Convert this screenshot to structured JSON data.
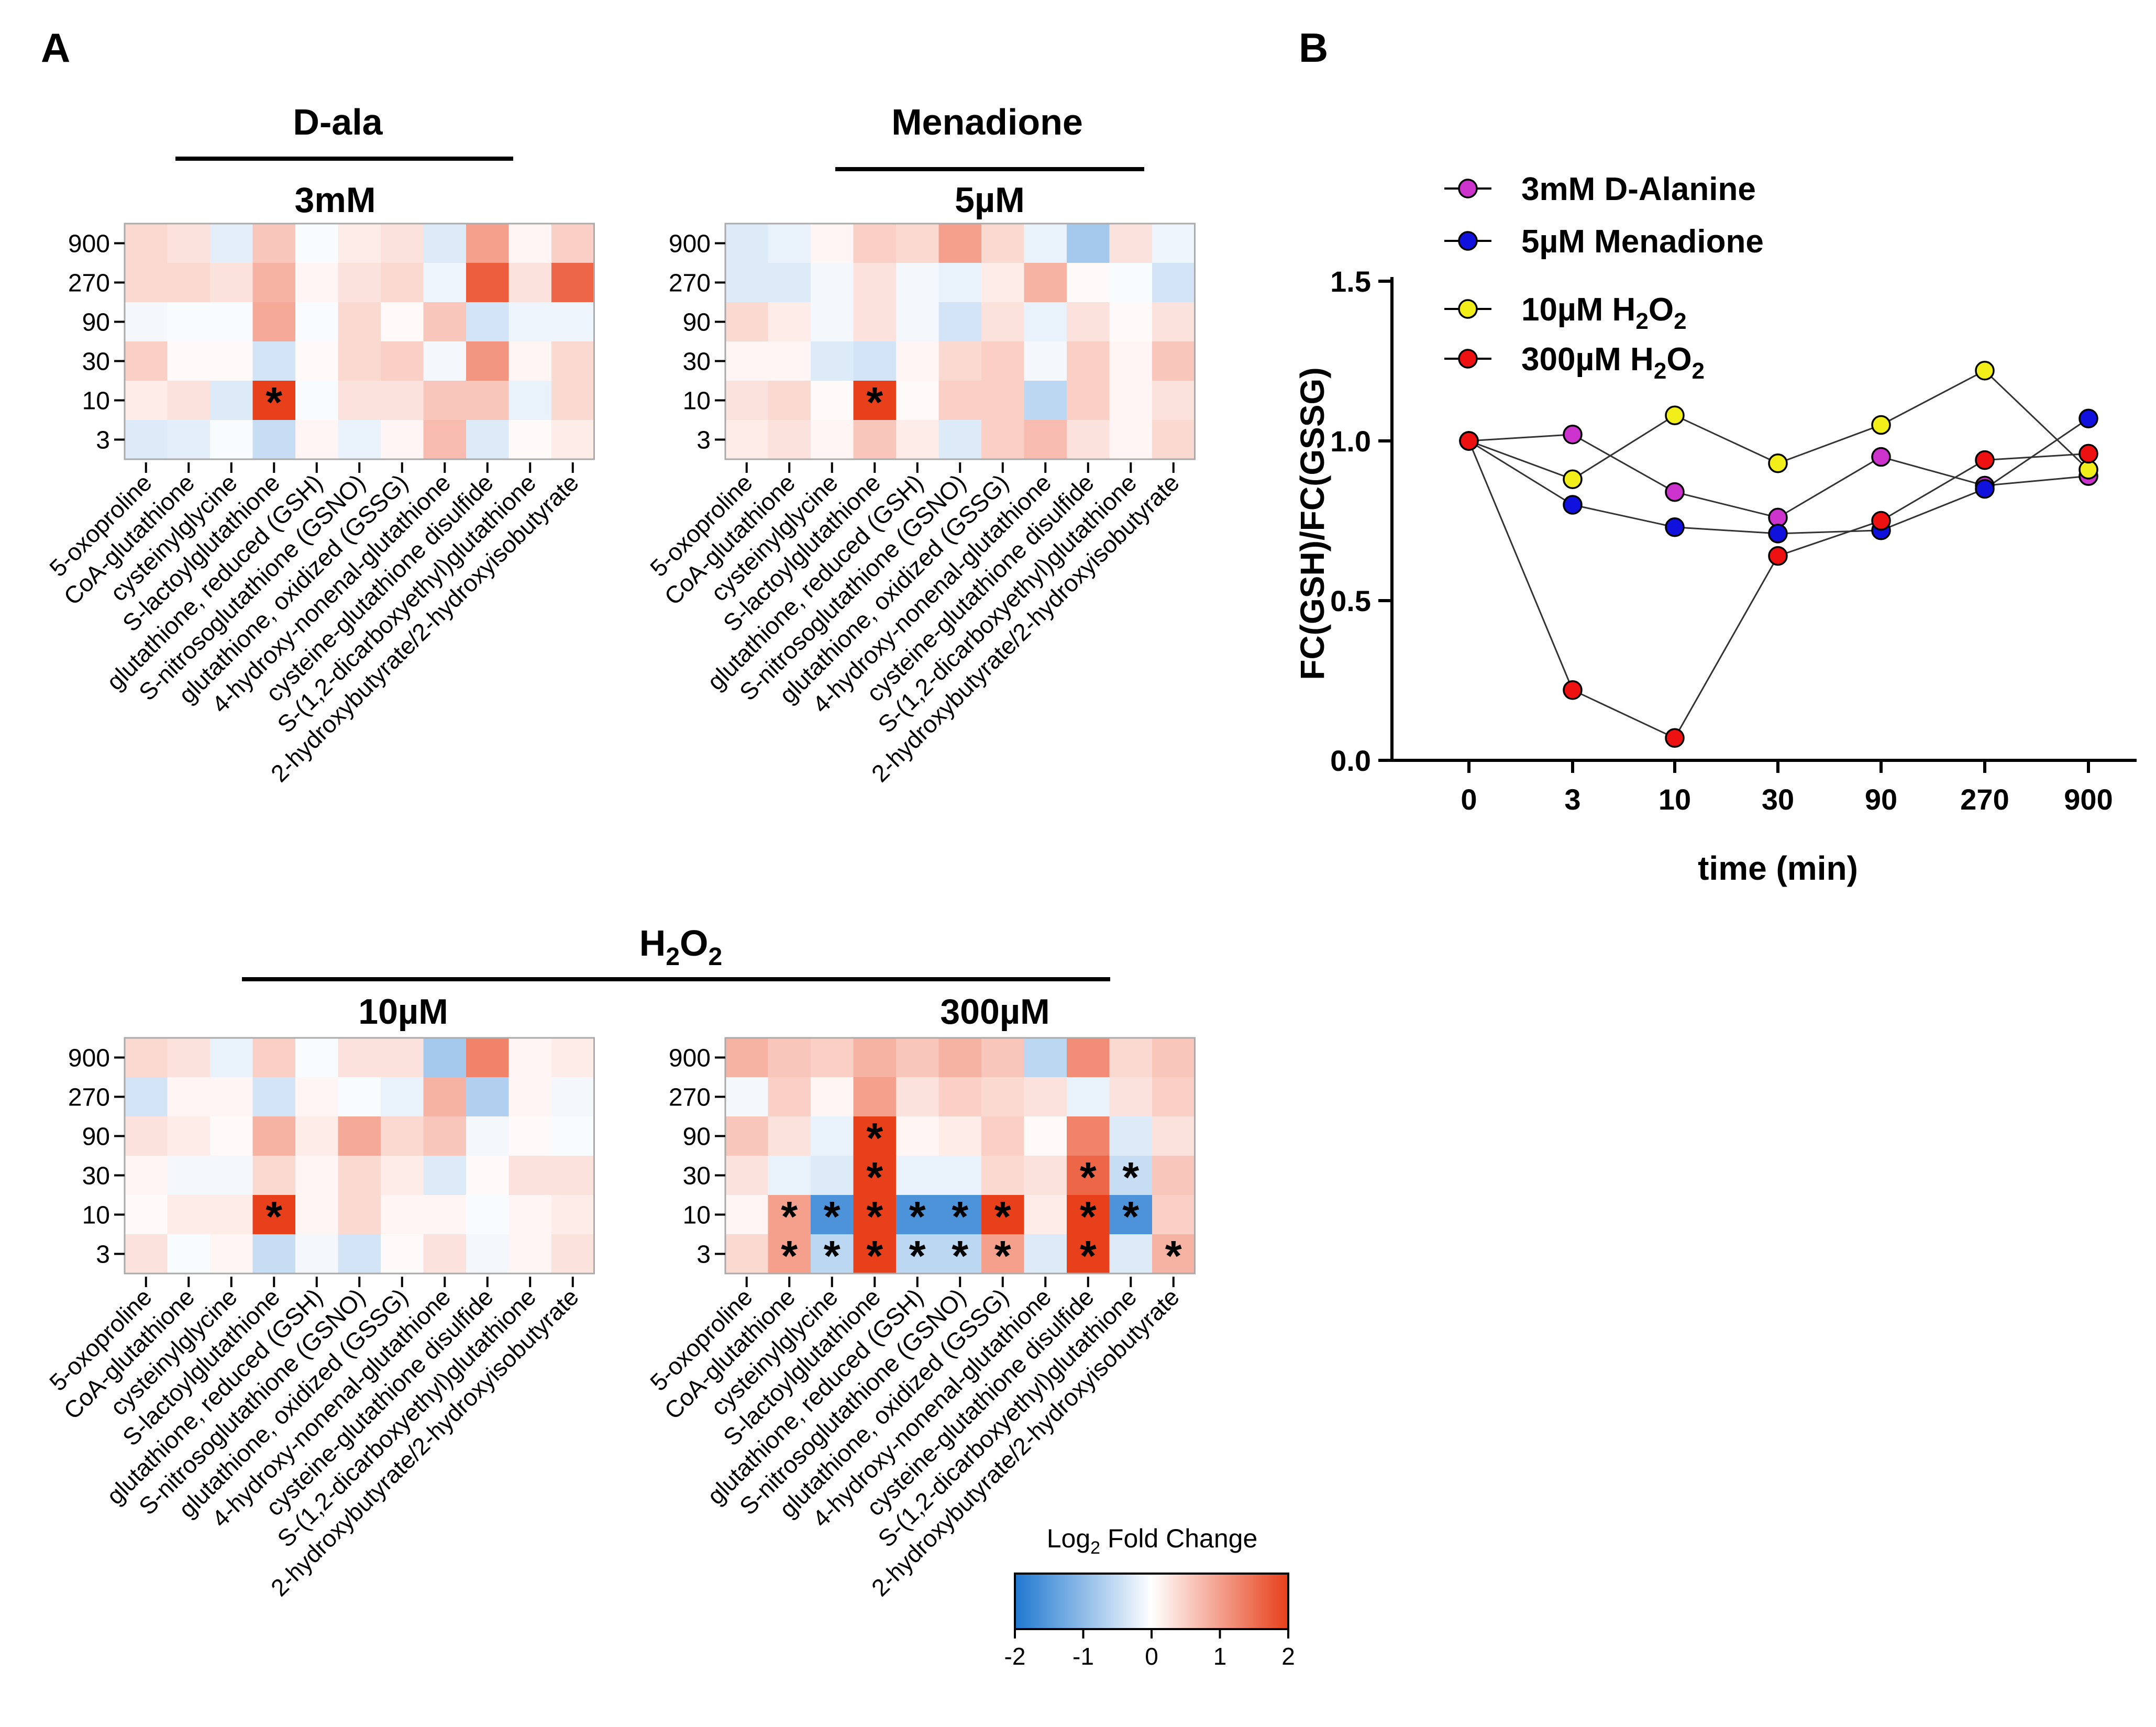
{
  "panels": {
    "A": {
      "label": "A"
    },
    "B": {
      "label": "B"
    }
  },
  "heatmap_common": {
    "rows": [
      "900",
      "270",
      "90",
      "30",
      "10",
      "3"
    ],
    "columns": [
      "5-oxoproline",
      "CoA-glutathione",
      "cysteinylglycine",
      "S-lactoylglutathione",
      "glutathione, reduced (GSH)",
      "S-nitrosoglutathione (GSNO)",
      "glutathione, oxidized (GSSG)",
      "4-hydroxy-nonenal-glutathione",
      "cysteine-glutathione disulfide",
      "S-(1,2-dicarboxyethyl)glutathione",
      "2-hydroxybutyrate/2-hydroxyisobutyrate"
    ],
    "significance_mark": "*"
  },
  "group_titles": {
    "dala": "D-ala",
    "menadione": "Menadione",
    "h2o2_main": "H",
    "h2o2_sub": "2",
    "h2o2_o": "O",
    "h2o2_sub2": "2"
  },
  "colorbar": {
    "title_main": "Log",
    "title_sub": "2",
    "title_rest": " Fold Change",
    "ticks": [
      "-2",
      "-1",
      "0",
      "1",
      "2"
    ],
    "min": -2,
    "max": 2,
    "low_color": "#1f78d1",
    "mid_color": "#ffffff",
    "high_color": "#e8401a"
  },
  "chart_data": [
    {
      "type": "heatmap",
      "id": "hm1",
      "group": "D-ala",
      "title": "3mM",
      "rows": [
        "900",
        "270",
        "90",
        "30",
        "10",
        "3"
      ],
      "values": [
        [
          0.4,
          0.3,
          -0.25,
          0.6,
          -0.05,
          0.2,
          0.3,
          -0.3,
          1.0,
          0.1,
          0.5
        ],
        [
          0.4,
          0.4,
          0.3,
          0.8,
          0.1,
          0.3,
          0.4,
          -0.15,
          1.7,
          0.3,
          1.6
        ],
        [
          -0.1,
          -0.05,
          -0.05,
          0.9,
          -0.05,
          0.4,
          0.05,
          0.6,
          -0.4,
          -0.15,
          -0.15
        ],
        [
          0.5,
          0.05,
          0.05,
          -0.4,
          0.05,
          0.4,
          0.5,
          -0.1,
          1.1,
          0.1,
          0.4
        ],
        [
          0.2,
          0.3,
          -0.3,
          2.0,
          -0.05,
          0.3,
          0.3,
          0.6,
          0.6,
          -0.2,
          0.4
        ],
        [
          -0.3,
          -0.25,
          -0.05,
          -0.5,
          0.1,
          -0.2,
          0.1,
          0.7,
          -0.3,
          0.05,
          0.2
        ]
      ],
      "significant": [
        [
          4,
          3
        ]
      ]
    },
    {
      "type": "heatmap",
      "id": "hm2",
      "group": "Menadione",
      "title": "5µM",
      "rows": [
        "900",
        "270",
        "90",
        "30",
        "10",
        "3"
      ],
      "values": [
        [
          -0.3,
          -0.2,
          0.1,
          0.5,
          0.4,
          1.0,
          0.4,
          -0.2,
          -0.8,
          0.3,
          -0.15
        ],
        [
          -0.3,
          -0.3,
          -0.1,
          0.3,
          -0.1,
          -0.2,
          0.2,
          0.8,
          0.05,
          -0.05,
          -0.4
        ],
        [
          0.4,
          0.2,
          -0.1,
          0.3,
          -0.1,
          -0.4,
          0.3,
          -0.2,
          0.3,
          0.05,
          0.3
        ],
        [
          0.1,
          0.1,
          -0.3,
          -0.4,
          0.1,
          0.4,
          0.5,
          -0.1,
          0.5,
          0.1,
          0.6
        ],
        [
          0.3,
          0.4,
          0.05,
          2.0,
          0.05,
          0.5,
          0.5,
          -0.6,
          0.5,
          0.1,
          0.3
        ],
        [
          0.2,
          0.3,
          0.1,
          0.6,
          0.2,
          -0.3,
          0.5,
          0.7,
          0.3,
          0.1,
          0.4
        ]
      ],
      "significant": [
        [
          4,
          3
        ]
      ]
    },
    {
      "type": "heatmap",
      "id": "hm3",
      "group": "H2O2",
      "title": "10µM",
      "rows": [
        "900",
        "270",
        "90",
        "30",
        "10",
        "3"
      ],
      "values": [
        [
          0.4,
          0.3,
          -0.2,
          0.5,
          -0.05,
          0.3,
          0.3,
          -0.8,
          1.3,
          0.1,
          0.2
        ],
        [
          -0.4,
          0.1,
          0.1,
          -0.4,
          0.1,
          -0.05,
          -0.2,
          0.8,
          -0.7,
          0.1,
          -0.1
        ],
        [
          0.3,
          0.2,
          0.05,
          0.8,
          0.2,
          0.9,
          0.4,
          0.6,
          -0.1,
          0.05,
          -0.05
        ],
        [
          0.1,
          -0.1,
          -0.1,
          0.4,
          0.1,
          0.4,
          0.2,
          -0.3,
          0.05,
          0.3,
          0.3
        ],
        [
          0.05,
          0.2,
          0.2,
          2.0,
          0.1,
          0.4,
          0.1,
          0.1,
          -0.05,
          0.1,
          0.2
        ],
        [
          0.3,
          -0.05,
          0.1,
          -0.5,
          -0.1,
          -0.4,
          0.05,
          0.3,
          -0.1,
          0.1,
          0.3
        ]
      ],
      "significant": [
        [
          4,
          3
        ]
      ]
    },
    {
      "type": "heatmap",
      "id": "hm4",
      "group": "H2O2",
      "title": "300µM",
      "rows": [
        "900",
        "270",
        "90",
        "30",
        "10",
        "3"
      ],
      "values": [
        [
          0.8,
          0.6,
          0.5,
          0.8,
          0.6,
          0.8,
          0.6,
          -0.6,
          1.2,
          0.4,
          0.6
        ],
        [
          -0.1,
          0.5,
          0.1,
          1.0,
          0.3,
          0.5,
          0.4,
          0.3,
          -0.2,
          0.3,
          0.5
        ],
        [
          0.6,
          0.3,
          -0.2,
          2.0,
          0.1,
          0.2,
          0.5,
          0.05,
          1.3,
          -0.3,
          0.3
        ],
        [
          0.3,
          -0.2,
          -0.3,
          2.0,
          -0.2,
          -0.2,
          0.4,
          0.3,
          1.6,
          -0.5,
          0.6
        ],
        [
          0.1,
          1.0,
          -1.6,
          2.0,
          -1.6,
          -1.6,
          2.0,
          0.2,
          2.0,
          -1.6,
          0.5
        ],
        [
          0.4,
          1.0,
          -0.6,
          2.0,
          -0.6,
          -0.6,
          1.0,
          -0.3,
          2.0,
          -0.3,
          0.8
        ]
      ],
      "significant": [
        [
          2,
          3
        ],
        [
          3,
          3
        ],
        [
          3,
          8
        ],
        [
          3,
          9
        ],
        [
          4,
          1
        ],
        [
          4,
          2
        ],
        [
          4,
          3
        ],
        [
          4,
          4
        ],
        [
          4,
          5
        ],
        [
          4,
          6
        ],
        [
          4,
          8
        ],
        [
          4,
          9
        ],
        [
          5,
          1
        ],
        [
          5,
          2
        ],
        [
          5,
          3
        ],
        [
          5,
          4
        ],
        [
          5,
          5
        ],
        [
          5,
          6
        ],
        [
          5,
          8
        ],
        [
          5,
          10
        ]
      ]
    },
    {
      "type": "line",
      "id": "lineB",
      "xlabel": "time (min)",
      "ylabel": "FC(GSH)/FC(GSSG)",
      "categories": [
        "0",
        "3",
        "10",
        "30",
        "90",
        "270",
        "900"
      ],
      "ylim": [
        0,
        1.5
      ],
      "yticks": [
        "0.0",
        "0.5",
        "1.0",
        "1.5"
      ],
      "legend_position": "top-left",
      "series": [
        {
          "name": "3mM D-Alanine",
          "color": "#cc33cc",
          "values": [
            1.0,
            1.02,
            0.84,
            0.76,
            0.95,
            0.86,
            0.89
          ]
        },
        {
          "name": "5µM Menadione",
          "color": "#1111dd",
          "values": [
            1.0,
            0.8,
            0.73,
            0.71,
            0.72,
            0.85,
            1.07
          ]
        },
        {
          "name": "10µM H2O2",
          "color": "#f2ee1a",
          "values": [
            1.0,
            0.88,
            1.08,
            0.93,
            1.05,
            1.22,
            0.91
          ]
        },
        {
          "name": "300µM H2O2",
          "color": "#ee1111",
          "values": [
            1.0,
            0.22,
            0.07,
            0.64,
            0.75,
            0.94,
            0.96
          ]
        }
      ]
    }
  ]
}
